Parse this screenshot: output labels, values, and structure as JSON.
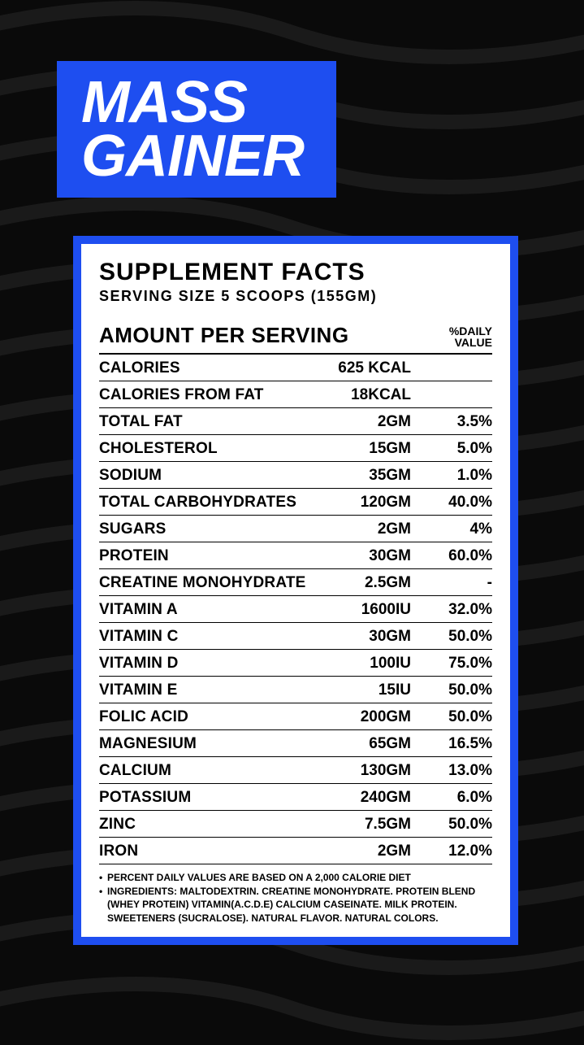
{
  "colors": {
    "background": "#0a0a0a",
    "wave_stroke": "#1a1a1a",
    "accent": "#1e4ef0",
    "panel_bg": "#ffffff",
    "text_light": "#ffffff",
    "text_dark": "#000000"
  },
  "title": {
    "line1": "MASS",
    "line2": "GAINER",
    "fontsize": 72,
    "color": "#ffffff",
    "bg": "#1e4ef0"
  },
  "panel": {
    "heading": "SUPPLEMENT FACTS",
    "serving": "SERVING SIZE 5 SCOOPS (155GM)",
    "header_amount": "AMOUNT PER SERVING",
    "header_dv_l1": "%DAILY",
    "header_dv_l2": "VALUE",
    "rows": [
      {
        "name": "CALORIES",
        "amount": "625 KCAL",
        "dv": ""
      },
      {
        "name": "CALORIES FROM FAT",
        "amount": "18KCAL",
        "dv": ""
      },
      {
        "name": "TOTAL FAT",
        "amount": "2GM",
        "dv": "3.5%"
      },
      {
        "name": "CHOLESTEROL",
        "amount": "15GM",
        "dv": "5.0%"
      },
      {
        "name": "SODIUM",
        "amount": "35GM",
        "dv": "1.0%"
      },
      {
        "name": "TOTAL CARBOHYDRATES",
        "amount": "120GM",
        "dv": "40.0%"
      },
      {
        "name": "SUGARS",
        "amount": "2GM",
        "dv": "4%"
      },
      {
        "name": "PROTEIN",
        "amount": "30GM",
        "dv": "60.0%"
      },
      {
        "name": "CREATINE MONOHYDRATE",
        "amount": "2.5GM",
        "dv": "-"
      },
      {
        "name": "VITAMIN A",
        "amount": "1600IU",
        "dv": "32.0%"
      },
      {
        "name": "VITAMIN C",
        "amount": "30GM",
        "dv": "50.0%"
      },
      {
        "name": "VITAMIN D",
        "amount": "100IU",
        "dv": "75.0%"
      },
      {
        "name": "VITAMIN E",
        "amount": "15IU",
        "dv": "50.0%"
      },
      {
        "name": "FOLIC ACID",
        "amount": "200GM",
        "dv": "50.0%"
      },
      {
        "name": "MAGNESIUM",
        "amount": "65GM",
        "dv": "16.5%"
      },
      {
        "name": "CALCIUM",
        "amount": "130GM",
        "dv": "13.0%"
      },
      {
        "name": "POTASSIUM",
        "amount": "240GM",
        "dv": "6.0%"
      },
      {
        "name": "ZINC",
        "amount": "7.5GM",
        "dv": "50.0%"
      },
      {
        "name": "IRON",
        "amount": "2GM",
        "dv": "12.0%"
      }
    ],
    "footnotes": [
      "PERCENT DAILY VALUES ARE BASED ON A 2,000 CALORIE DIET",
      "INGREDIENTS: MALTODEXTRIN. CREATINE MONOHYDRATE. PROTEIN BLEND (WHEY PROTEIN) VITAMIN(A.C.D.E) CALCIUM CASEINATE. MILK PROTEIN. SWEETENERS (SUCRALOSE). NATURAL FLAVOR. NATURAL COLORS."
    ]
  }
}
